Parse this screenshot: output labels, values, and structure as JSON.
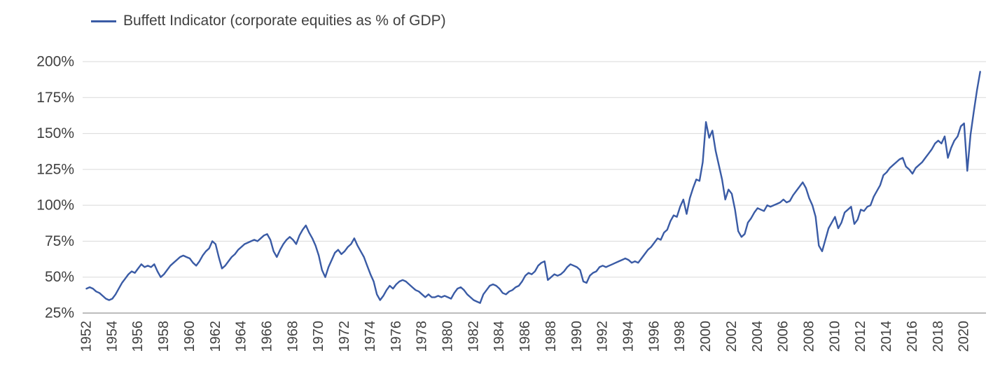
{
  "legend": {
    "label": "Buffett Indicator (corporate equities as % of GDP)"
  },
  "colors": {
    "line": "#3A5BA5",
    "grid": "#d9d9d9",
    "axis": "#a6a6a6",
    "text": "#404040"
  },
  "chart_data": {
    "type": "line",
    "title": "",
    "xlabel": "",
    "ylabel": "",
    "grid": true,
    "legend_position": "top-left",
    "ylim": [
      25,
      200
    ],
    "ytick_step": 25,
    "ytick_labels": [
      "25%",
      "50%",
      "75%",
      "100%",
      "125%",
      "150%",
      "175%",
      "200%"
    ],
    "xtick_years": [
      1952,
      1954,
      1956,
      1958,
      1960,
      1962,
      1964,
      1966,
      1968,
      1970,
      1972,
      1974,
      1976,
      1978,
      1980,
      1982,
      1984,
      1986,
      1988,
      1990,
      1992,
      1994,
      1996,
      1998,
      2000,
      2002,
      2004,
      2006,
      2008,
      2010,
      2012,
      2014,
      2016,
      2018,
      2020
    ],
    "series": [
      {
        "name": "Buffett Indicator (corporate equities as % of GDP)",
        "x_start": 1952,
        "x_step": 0.25,
        "values": [
          42,
          43,
          42,
          40,
          39,
          37,
          35,
          34,
          35,
          38,
          42,
          46,
          49,
          52,
          54,
          53,
          56,
          59,
          57,
          58,
          57,
          59,
          54,
          50,
          52,
          55,
          58,
          60,
          62,
          64,
          65,
          64,
          63,
          60,
          58,
          61,
          65,
          68,
          70,
          75,
          73,
          64,
          56,
          58,
          61,
          64,
          66,
          69,
          71,
          73,
          74,
          75,
          76,
          75,
          77,
          79,
          80,
          76,
          68,
          64,
          69,
          73,
          76,
          78,
          76,
          73,
          79,
          83,
          86,
          81,
          77,
          72,
          65,
          55,
          50,
          57,
          62,
          67,
          69,
          66,
          68,
          71,
          73,
          77,
          72,
          68,
          64,
          58,
          52,
          47,
          38,
          34,
          37,
          41,
          44,
          42,
          45,
          47,
          48,
          47,
          45,
          43,
          41,
          40,
          38,
          36,
          38,
          36,
          36,
          37,
          36,
          37,
          36,
          35,
          39,
          42,
          43,
          41,
          38,
          36,
          34,
          33,
          32,
          38,
          41,
          44,
          45,
          44,
          42,
          39,
          38,
          40,
          41,
          43,
          44,
          47,
          51,
          53,
          52,
          54,
          58,
          60,
          61,
          48,
          50,
          52,
          51,
          52,
          54,
          57,
          59,
          58,
          57,
          55,
          47,
          46,
          51,
          53,
          54,
          57,
          58,
          57,
          58,
          59,
          60,
          61,
          62,
          63,
          62,
          60,
          61,
          60,
          63,
          66,
          69,
          71,
          74,
          77,
          76,
          81,
          83,
          89,
          93,
          92,
          99,
          104,
          94,
          105,
          112,
          118,
          117,
          130,
          158,
          147,
          152,
          138,
          128,
          118,
          104,
          111,
          108,
          97,
          82,
          78,
          80,
          88,
          91,
          95,
          98,
          97,
          96,
          100,
          99,
          100,
          101,
          102,
          104,
          102,
          103,
          107,
          110,
          113,
          116,
          112,
          105,
          100,
          92,
          72,
          68,
          76,
          84,
          88,
          92,
          84,
          88,
          95,
          97,
          99,
          87,
          90,
          97,
          96,
          99,
          100,
          106,
          110,
          114,
          121,
          123,
          126,
          128,
          130,
          132,
          133,
          127,
          125,
          122,
          126,
          128,
          130,
          133,
          136,
          139,
          143,
          145,
          143,
          148,
          133,
          140,
          145,
          148,
          155,
          157,
          124,
          149,
          165,
          180,
          193
        ]
      }
    ]
  }
}
